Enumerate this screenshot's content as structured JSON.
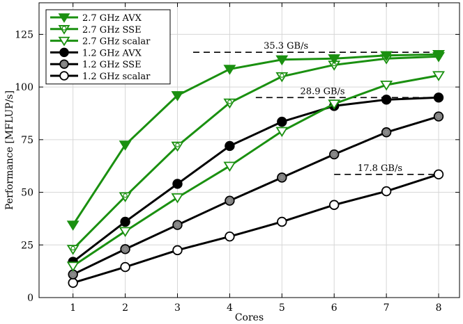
{
  "chart_data": {
    "type": "line",
    "title": "",
    "xlabel": "Cores",
    "ylabel": "Performance [MFLUP/s]",
    "x": [
      1,
      2,
      3,
      4,
      5,
      6,
      7,
      8
    ],
    "xlim": [
      0.35,
      8.4
    ],
    "ylim": [
      0,
      140
    ],
    "xticks": [
      "1",
      "2",
      "3",
      "4",
      "5",
      "6",
      "7",
      "8"
    ],
    "yticks": [
      0,
      25,
      50,
      75,
      100,
      125
    ],
    "grid": true,
    "legend_position": "top-left",
    "colors": {
      "green": "#1a9010",
      "black": "#000000",
      "gray_fill": "#8c8c8c",
      "white_fill": "#ffffff",
      "grid": "#d6d6d6"
    },
    "series": [
      {
        "name": "2.7 GHz AVX",
        "color": "#1a9010",
        "marker": "triangle-down",
        "fill": "#1a9010",
        "values": [
          34.5,
          72.5,
          96,
          108.5,
          113,
          113.5,
          115,
          115.5
        ]
      },
      {
        "name": "2.7 GHz SSE",
        "color": "#1a9010",
        "marker": "triangle-down-dot",
        "fill": "#ffffff",
        "values": [
          23,
          48,
          72,
          92.5,
          105,
          110.5,
          113.5,
          114.5
        ]
      },
      {
        "name": "2.7 GHz scalar",
        "color": "#1a9010",
        "marker": "triangle-down",
        "fill": "#ffffff",
        "values": [
          15,
          31.5,
          47.5,
          62.5,
          79,
          92,
          101,
          105.5
        ]
      },
      {
        "name": "1.2 GHz AVX",
        "color": "#000000",
        "marker": "circle",
        "fill": "#000000",
        "values": [
          17,
          36,
          54,
          72,
          83.5,
          91,
          94,
          95
        ]
      },
      {
        "name": "1.2 GHz SSE",
        "color": "#000000",
        "marker": "circle",
        "fill": "#8c8c8c",
        "values": [
          11,
          23,
          34.5,
          46,
          57,
          68,
          78.5,
          86
        ]
      },
      {
        "name": "1.2 GHz scalar",
        "color": "#000000",
        "marker": "circle",
        "fill": "#ffffff",
        "values": [
          7,
          14.5,
          22.5,
          29,
          36,
          44,
          50.5,
          58.5
        ]
      }
    ],
    "annotations": [
      {
        "text": "35.3 GB/s",
        "y": 116.5,
        "x_from": 3.3,
        "x_to": 8.05,
        "text_x": 4.65
      },
      {
        "text": "28.9 GB/s",
        "y": 95,
        "x_from": 4.5,
        "x_to": 8.05,
        "text_x": 5.35
      },
      {
        "text": "17.8 GB/s",
        "y": 58.5,
        "x_from": 6.0,
        "x_to": 8.05,
        "text_x": 6.45
      }
    ]
  }
}
